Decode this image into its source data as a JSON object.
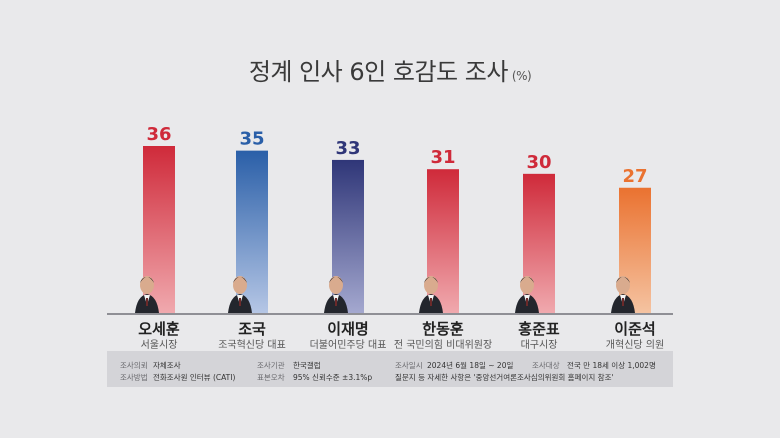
{
  "title": "정계 인사 6인 호감도 조사",
  "unit": "(%)",
  "colors": {
    "red": "#cf2a3a",
    "blue": "#2a5fa8",
    "navy": "#2f3678",
    "orange": "#ea7230"
  },
  "chart_data": {
    "type": "bar",
    "title": "정계 인사 6인 호감도 조사",
    "unit": "(%)",
    "ylim": [
      0,
      40
    ],
    "grid": false,
    "categories": [
      "오세훈",
      "조국",
      "이재명",
      "한동훈",
      "홍준표",
      "이준석"
    ],
    "values": [
      36,
      35,
      33,
      31,
      30,
      27
    ],
    "roles": [
      "서울시장",
      "조국혁신당 대표",
      "더불어민주당 대표",
      "전 국민의힘 비대위원장",
      "대구시장",
      "개혁신당 의원"
    ],
    "bar_colors": [
      "red",
      "blue",
      "navy",
      "red",
      "red",
      "orange"
    ]
  },
  "info": {
    "r1": {
      "client_label": "조사의뢰",
      "client": "자체조사",
      "agency_label": "조사기관",
      "agency": "한국갤럽",
      "date_label": "조사일시",
      "date": "2024년 6월 18일 ~ 20일",
      "target_label": "조사대상",
      "target": "전국 만 18세 이상 1,002명"
    },
    "r2": {
      "method_label": "조사방법",
      "method": "전화조사원 인터뷰 (CATI)",
      "error_label": "표본오차",
      "error": "95% 신뢰수준 ±3.1%p",
      "note": "질문지 등 자세한 사항은 '중앙선거여론조사심의위원회 홈페이지 참조'"
    }
  }
}
